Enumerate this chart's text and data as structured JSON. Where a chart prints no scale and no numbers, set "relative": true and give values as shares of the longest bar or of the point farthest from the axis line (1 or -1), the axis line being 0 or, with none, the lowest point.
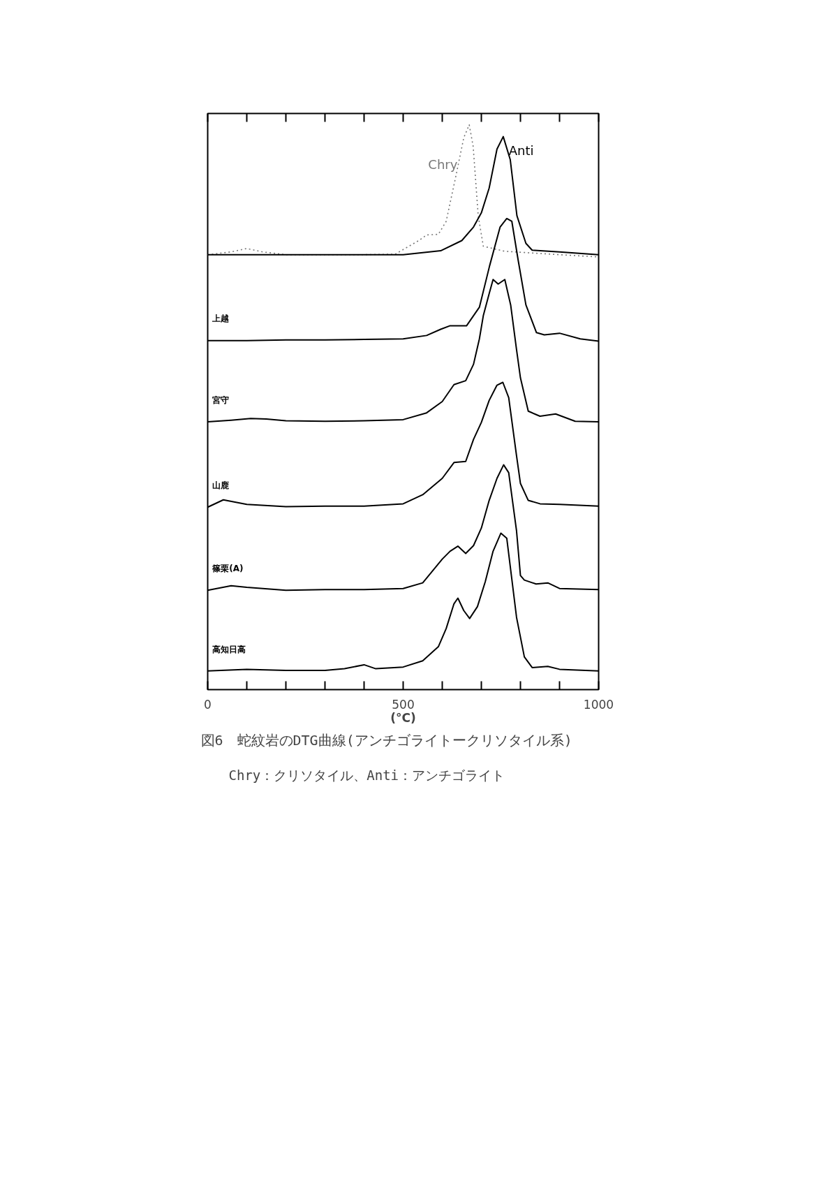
{
  "chart_data": {
    "type": "line",
    "relative": true,
    "title": "図6　蛇紋岩のDTG曲線(アンチゴライトークリソタイル系)",
    "annotations": [
      "Chry：クリソタイル、Anti：アンチゴライト"
    ],
    "xlabel": "(°C)",
    "xlim": [
      0,
      1000
    ],
    "xticks": [
      0,
      {
        "value": 100,
        "label": null
      },
      {
        "value": 200,
        "label": null
      },
      {
        "value": 300,
        "label": null
      },
      {
        "value": 400,
        "label": null
      },
      500,
      {
        "value": 600,
        "label": null
      },
      {
        "value": 700,
        "label": null
      },
      {
        "value": 800,
        "label": null
      },
      {
        "value": 900,
        "label": null
      },
      1000
    ],
    "series": [
      {
        "name": "Chry",
        "color": "#777777",
        "line_style": "dotted",
        "x": [
          0,
          60,
          100,
          140,
          200,
          300,
          400,
          480,
          540,
          560,
          590,
          610,
          636,
          655,
          669,
          679,
          692,
          705,
          760,
          900,
          1000
        ],
        "values": [
          0.77,
          0.775,
          0.781,
          0.775,
          0.77,
          0.77,
          0.77,
          0.771,
          0.795,
          0.805,
          0.806,
          0.829,
          0.913,
          0.977,
          1.0,
          0.962,
          0.839,
          0.785,
          0.776,
          0.77,
          0.766
        ]
      },
      {
        "name": "Anti",
        "color": "#000000",
        "line_style": "solid",
        "x": [
          0,
          200,
          400,
          500,
          596,
          650,
          680,
          700,
          720,
          740,
          756,
          774,
          791,
          814,
          830,
          900,
          1000
        ],
        "values": [
          0.77,
          0.77,
          0.77,
          0.77,
          0.777,
          0.795,
          0.819,
          0.844,
          0.888,
          0.957,
          0.979,
          0.938,
          0.839,
          0.79,
          0.778,
          0.775,
          0.77
        ]
      },
      {
        "name": "上越",
        "color": "#000000",
        "line_style": "solid",
        "x": [
          0,
          100,
          200,
          300,
          400,
          500,
          560,
          596,
          619,
          662,
          695,
          721,
          748,
          765,
          778,
          794,
          814,
          841,
          861,
          900,
          953,
          1000
        ],
        "values": [
          0.618,
          0.618,
          0.619,
          0.619,
          0.62,
          0.621,
          0.627,
          0.638,
          0.644,
          0.644,
          0.677,
          0.75,
          0.819,
          0.834,
          0.829,
          0.761,
          0.681,
          0.632,
          0.628,
          0.631,
          0.621,
          0.617
        ]
      },
      {
        "name": "宮守",
        "color": "#000000",
        "line_style": "solid",
        "x": [
          0,
          60,
          110,
          150,
          200,
          300,
          400,
          500,
          560,
          600,
          630,
          660,
          680,
          695,
          705,
          720,
          730,
          743,
          760,
          775,
          790,
          800,
          820,
          850,
          890,
          940,
          1000
        ],
        "values": [
          0.474,
          0.477,
          0.48,
          0.479,
          0.476,
          0.475,
          0.476,
          0.478,
          0.49,
          0.51,
          0.54,
          0.547,
          0.576,
          0.621,
          0.662,
          0.701,
          0.726,
          0.718,
          0.726,
          0.681,
          0.602,
          0.552,
          0.493,
          0.484,
          0.488,
          0.475,
          0.474
        ]
      },
      {
        "name": "山鹿",
        "color": "#000000",
        "line_style": "solid",
        "x": [
          0,
          40,
          100,
          200,
          300,
          400,
          500,
          550,
          600,
          630,
          660,
          680,
          700,
          720,
          740,
          755,
          770,
          790,
          800,
          820,
          850,
          900,
          1000
        ],
        "values": [
          0.323,
          0.336,
          0.328,
          0.324,
          0.325,
          0.325,
          0.329,
          0.345,
          0.374,
          0.402,
          0.404,
          0.443,
          0.473,
          0.512,
          0.539,
          0.544,
          0.517,
          0.414,
          0.365,
          0.335,
          0.329,
          0.328,
          0.325
        ]
      },
      {
        "name": "篠栗(A)",
        "color": "#000000",
        "line_style": "solid",
        "x": [
          0,
          60,
          100,
          200,
          300,
          400,
          500,
          550,
          600,
          620,
          640,
          660,
          680,
          700,
          720,
          740,
          757,
          770,
          790,
          800,
          810,
          840,
          870,
          900,
          1000
        ],
        "values": [
          0.176,
          0.184,
          0.181,
          0.176,
          0.177,
          0.177,
          0.179,
          0.189,
          0.231,
          0.245,
          0.254,
          0.241,
          0.255,
          0.286,
          0.335,
          0.374,
          0.398,
          0.384,
          0.281,
          0.202,
          0.194,
          0.187,
          0.189,
          0.179,
          0.177
        ]
      },
      {
        "name": "高知日高",
        "color": "#000000",
        "line_style": "solid",
        "x": [
          0,
          100,
          200,
          300,
          350,
          400,
          430,
          500,
          550,
          590,
          610,
          630,
          640,
          655,
          670,
          690,
          710,
          730,
          750,
          765,
          790,
          810,
          830,
          870,
          900,
          1000
        ],
        "values": [
          0.033,
          0.036,
          0.034,
          0.034,
          0.037,
          0.044,
          0.037,
          0.04,
          0.051,
          0.076,
          0.108,
          0.152,
          0.162,
          0.14,
          0.126,
          0.147,
          0.191,
          0.245,
          0.277,
          0.268,
          0.128,
          0.058,
          0.039,
          0.041,
          0.036,
          0.033
        ]
      }
    ]
  }
}
